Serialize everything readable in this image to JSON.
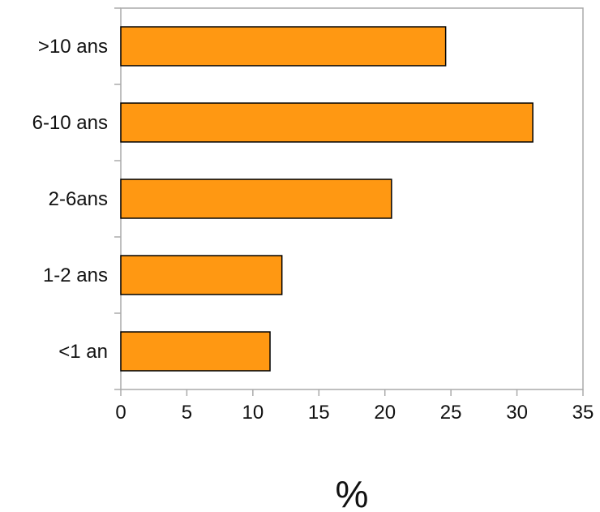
{
  "chart_data": {
    "type": "bar",
    "orientation": "horizontal",
    "categories": [
      ">10 ans",
      "6-10 ans",
      "2-6ans",
      "1-2 ans",
      "<1 an"
    ],
    "values": [
      24.6,
      31.2,
      20.5,
      12.2,
      11.3
    ],
    "xlabel": "%",
    "ylabel": "",
    "xlim": [
      0,
      35
    ],
    "xticks": [
      0,
      5,
      10,
      15,
      20,
      25,
      30,
      35
    ],
    "grid": false,
    "legend": "none",
    "colors": {
      "bar_fill": "#ff9812",
      "bar_stroke": "#000000",
      "axis": "#aaaaaa"
    }
  }
}
